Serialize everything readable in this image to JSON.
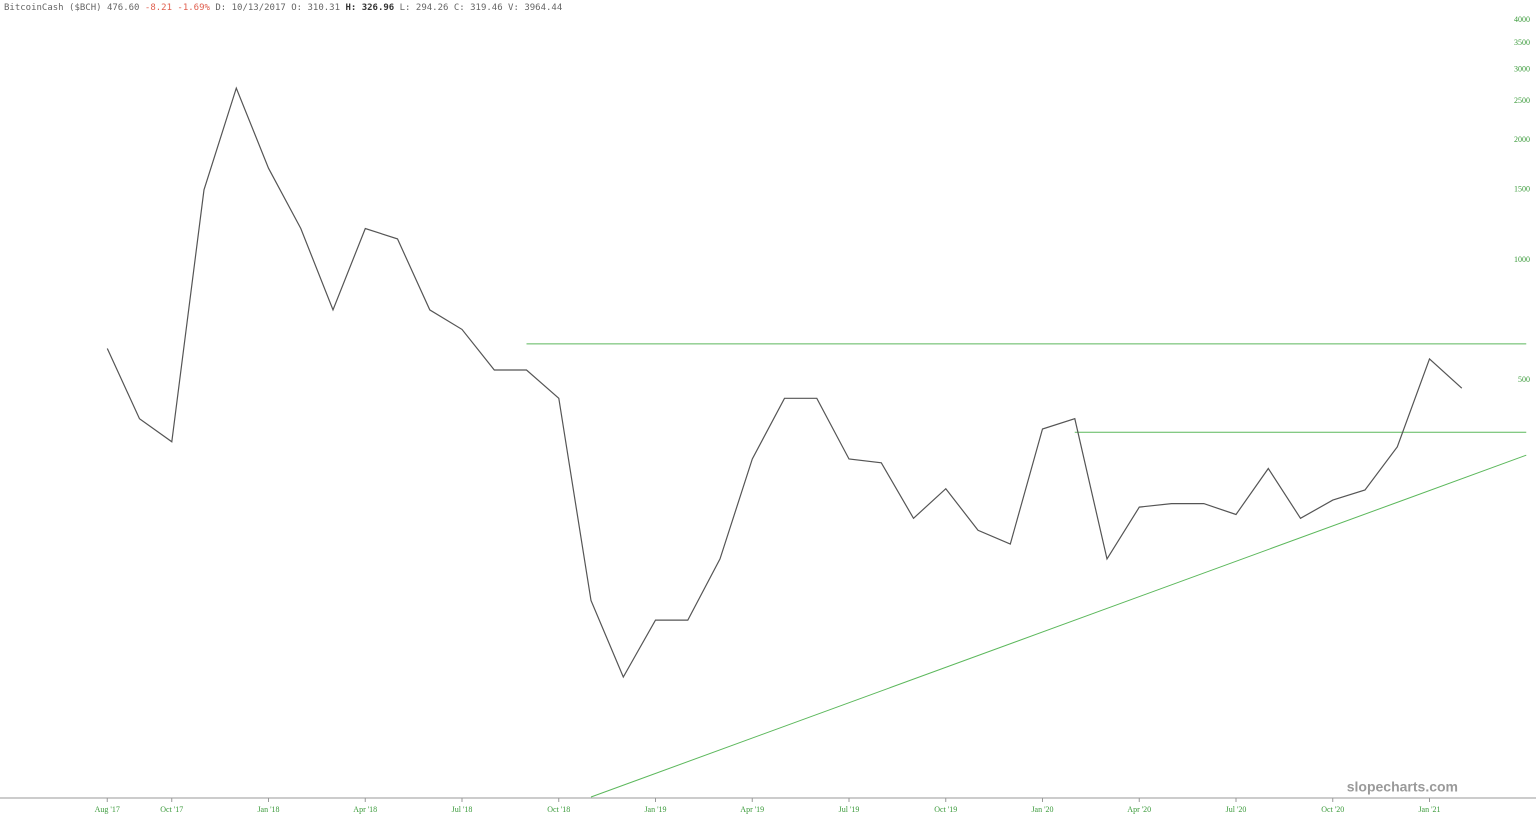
{
  "chart_data": {
    "type": "line",
    "log_scale": true,
    "header": {
      "name": "BitcoinCash ($BCH)",
      "last": "476.60",
      "change": "-8.21",
      "change_pct": "-1.69%",
      "date_label": "D:",
      "date": "10/13/2017",
      "open_label": "O:",
      "open": "310.31",
      "high_label": "H:",
      "high": "326.96",
      "low_label": "L:",
      "low": "294.26",
      "close_label": "C:",
      "close": "319.46",
      "volume_label": "V:",
      "volume": "3964.44"
    },
    "watermark": "slopecharts.com",
    "x": [
      "2017-08",
      "2017-09",
      "2017-10",
      "2017-11",
      "2017-12",
      "2018-01",
      "2018-02",
      "2018-03",
      "2018-04",
      "2018-05",
      "2018-06",
      "2018-07",
      "2018-08",
      "2018-09",
      "2018-10",
      "2018-11",
      "2018-12",
      "2019-01",
      "2019-02",
      "2019-03",
      "2019-04",
      "2019-05",
      "2019-06",
      "2019-07",
      "2019-08",
      "2019-09",
      "2019-10",
      "2019-11",
      "2019-12",
      "2020-01",
      "2020-02",
      "2020-03",
      "2020-04",
      "2020-05",
      "2020-06",
      "2020-07",
      "2020-08",
      "2020-09",
      "2020-10",
      "2020-11",
      "2020-12",
      "2021-01",
      "2021-02"
    ],
    "series": [
      {
        "name": "BCH",
        "color": "#555555",
        "values": [
          600,
          400,
          350,
          1500,
          2700,
          1700,
          1200,
          750,
          1200,
          1130,
          750,
          670,
          530,
          530,
          450,
          140,
          90,
          125,
          125,
          178,
          317,
          450,
          450,
          317,
          310,
          225,
          267,
          210,
          194,
          377,
          400,
          178,
          240,
          245,
          245,
          230,
          300,
          225,
          250,
          265,
          340,
          565,
          477
        ]
      }
    ],
    "trendlines": [
      {
        "color": "#5cb85c",
        "x": [
          "2018-09",
          "2021-04"
        ],
        "values": [
          616,
          616
        ]
      },
      {
        "color": "#5cb85c",
        "x": [
          "2020-02",
          "2021-04"
        ],
        "values": [
          370,
          370
        ]
      },
      {
        "color": "#5cb85c",
        "x": [
          "2018-11",
          "2021-04"
        ],
        "values": [
          45,
          324
        ]
      }
    ],
    "xlim": [
      "2017-07",
      "2021-04"
    ],
    "xticks": [
      {
        "value": "2017-08",
        "label": "Aug '17"
      },
      {
        "value": "2017-10",
        "label": "Oct '17"
      },
      {
        "value": "2018-01",
        "label": "Jan '18"
      },
      {
        "value": "2018-04",
        "label": "Apr '18"
      },
      {
        "value": "2018-07",
        "label": "Jul '18"
      },
      {
        "value": "2018-10",
        "label": "Oct '18"
      },
      {
        "value": "2019-01",
        "label": "Jan '19"
      },
      {
        "value": "2019-04",
        "label": "Apr '19"
      },
      {
        "value": "2019-07",
        "label": "Jul '19"
      },
      {
        "value": "2019-10",
        "label": "Oct '19"
      },
      {
        "value": "2020-01",
        "label": "Jan '20"
      },
      {
        "value": "2020-04",
        "label": "Apr '20"
      },
      {
        "value": "2020-07",
        "label": "Jul '20"
      },
      {
        "value": "2020-10",
        "label": "Oct '20"
      },
      {
        "value": "2021-01",
        "label": "Jan '21"
      }
    ],
    "ylim": [
      45,
      4000
    ],
    "yticks": [
      500,
      1000,
      1500,
      2000,
      2500,
      3000,
      3500,
      4000
    ]
  }
}
